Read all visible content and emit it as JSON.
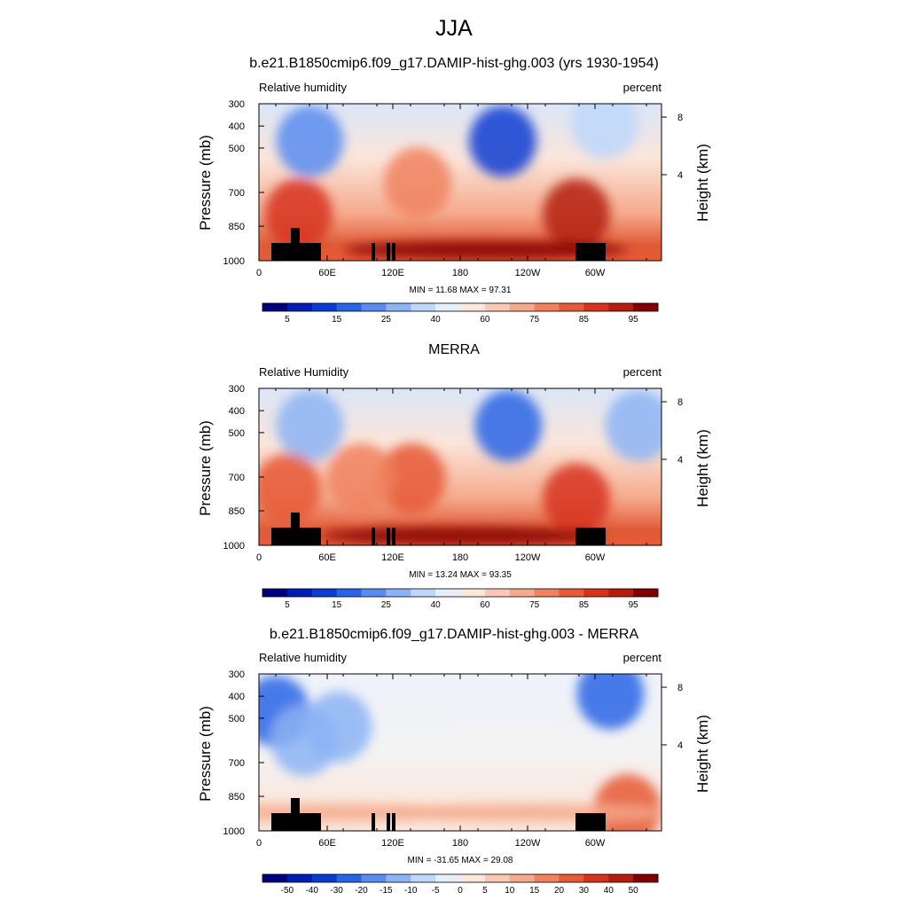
{
  "figure": {
    "title": "JJA"
  },
  "panels": [
    {
      "title": "b.e21.B1850cmip6.f09_g17.DAMIP-hist-ghg.003 (yrs 1930-1954)",
      "variable": "Relative humidity",
      "units": "percent",
      "minmax": "MIN =  11.68  MAX =  97.31",
      "colorbar_labels": [
        "5",
        "15",
        "25",
        "40",
        "60",
        "75",
        "85",
        "95"
      ]
    },
    {
      "title": "MERRA",
      "variable": "Relative Humidity",
      "units": "percent",
      "minmax": "MIN =  13.24  MAX =  93.35",
      "colorbar_labels": [
        "5",
        "15",
        "25",
        "40",
        "60",
        "75",
        "85",
        "95"
      ]
    },
    {
      "title": "b.e21.B1850cmip6.f09_g17.DAMIP-hist-ghg.003 - MERRA",
      "variable": "Relative humidity",
      "units": "percent",
      "minmax": "MIN = -31.65  MAX =  29.08",
      "colorbar_labels": [
        "-50",
        "-40",
        "-30",
        "-20",
        "-15",
        "-10",
        "-5",
        "0",
        "5",
        "10",
        "15",
        "20",
        "30",
        "40",
        "50"
      ]
    }
  ],
  "axes": {
    "ylabel_left": "Pressure (mb)",
    "ylabel_right": "Height (km)",
    "pressure_ticks": [
      "300",
      "400",
      "500",
      "700",
      "850",
      "1000"
    ],
    "height_ticks": [
      "8",
      "4"
    ],
    "lon_ticks": [
      "0",
      "60E",
      "120E",
      "180",
      "120W",
      "60W"
    ]
  },
  "chart_data": [
    {
      "type": "heatmap",
      "title": "b.e21.B1850cmip6.f09_g17.DAMIP-hist-ghg.003 (yrs 1930-1954)",
      "x_range": [
        0,
        355
      ],
      "y_range_mb": [
        1000,
        300
      ],
      "min": 11.68,
      "max": 97.31,
      "levels": [
        5,
        10,
        15,
        20,
        25,
        30,
        40,
        50,
        60,
        65,
        70,
        75,
        80,
        85,
        90,
        95
      ],
      "features": [
        {
          "lon": 45,
          "p": 400,
          "value": 20
        },
        {
          "lon": 215,
          "p": 400,
          "value": 12
        },
        {
          "lon": 305,
          "p": 350,
          "value": 30
        },
        {
          "lon": 140,
          "p": 550,
          "value": 70
        },
        {
          "lon": 35,
          "p": 700,
          "value": 80
        },
        {
          "lon": 280,
          "p": 700,
          "value": 85
        },
        {
          "lon": 200,
          "p": 920,
          "value": 95
        }
      ]
    },
    {
      "type": "heatmap",
      "title": "MERRA",
      "x_range": [
        0,
        355
      ],
      "y_range_mb": [
        1000,
        300
      ],
      "min": 13.24,
      "max": 93.35,
      "levels": [
        5,
        10,
        15,
        20,
        25,
        30,
        40,
        50,
        60,
        65,
        70,
        75,
        80,
        85,
        90,
        95
      ],
      "features": [
        {
          "lon": 45,
          "p": 400,
          "value": 25
        },
        {
          "lon": 220,
          "p": 400,
          "value": 15
        },
        {
          "lon": 335,
          "p": 400,
          "value": 25
        },
        {
          "lon": 135,
          "p": 600,
          "value": 78
        },
        {
          "lon": 90,
          "p": 600,
          "value": 72
        },
        {
          "lon": 25,
          "p": 650,
          "value": 75
        },
        {
          "lon": 280,
          "p": 700,
          "value": 82
        },
        {
          "lon": 180,
          "p": 930,
          "value": 90
        }
      ]
    },
    {
      "type": "heatmap",
      "title": "b.e21.B1850cmip6.f09_g17.DAMIP-hist-ghg.003 - MERRA",
      "x_range": [
        0,
        355
      ],
      "y_range_mb": [
        1000,
        300
      ],
      "min": -31.65,
      "max": 29.08,
      "levels": [
        -50,
        -40,
        -30,
        -20,
        -15,
        -10,
        -5,
        0,
        5,
        10,
        15,
        20,
        30,
        40,
        50
      ],
      "features": [
        {
          "lon": 15,
          "p": 400,
          "value": -25
        },
        {
          "lon": 40,
          "p": 500,
          "value": -15
        },
        {
          "lon": 70,
          "p": 450,
          "value": -15
        },
        {
          "lon": 310,
          "p": 350,
          "value": -25
        },
        {
          "lon": 325,
          "p": 850,
          "value": 20
        },
        {
          "lon": 60,
          "p": 870,
          "value": 10
        },
        {
          "lon": 240,
          "p": 870,
          "value": 10
        }
      ]
    }
  ],
  "colors": {
    "abs_scale": [
      "#00007f",
      "#001eb4",
      "#0a3cd2",
      "#2864e6",
      "#5a8cf0",
      "#8cb4f5",
      "#bed7fa",
      "#e6eefa",
      "#fde6dc",
      "#fac8b4",
      "#f5aa8c",
      "#f0825f",
      "#e65a37",
      "#d7321e",
      "#b41e0f",
      "#800000"
    ],
    "diff_scale": [
      "#00007f",
      "#001eb4",
      "#0a3cd2",
      "#2864e6",
      "#5a8cf0",
      "#8cb4f5",
      "#bed7fa",
      "#e6eefa",
      "#fde6dc",
      "#fac8b4",
      "#f5aa8c",
      "#f0825f",
      "#e65a37",
      "#d7321e",
      "#b41e0f",
      "#800000"
    ]
  }
}
